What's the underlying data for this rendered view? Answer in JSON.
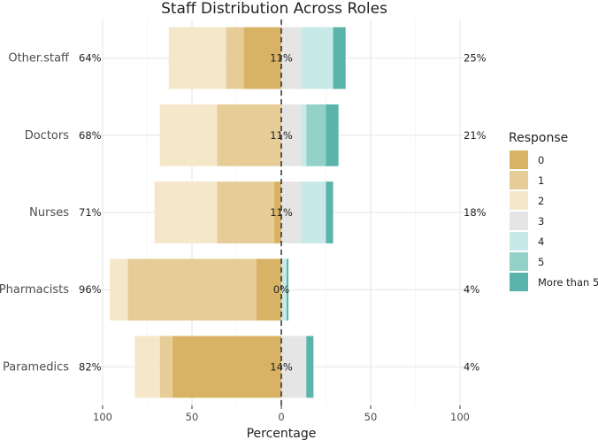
{
  "chart_data": {
    "type": "bar",
    "orientation": "horizontal",
    "diverging": true,
    "title": "Staff Distribution Across Roles",
    "xlabel": "Percentage",
    "ylabel": "",
    "xlim": [
      -100,
      100
    ],
    "xticks": [
      -100,
      -50,
      0,
      50,
      100
    ],
    "xtick_labels": [
      "100",
      "50",
      "0",
      "50",
      "100"
    ],
    "grid": true,
    "legend": {
      "title": "Response",
      "position": "right"
    },
    "categories": [
      "Other.staff",
      "Doctors",
      "Nurses",
      "Pharmacists",
      "Paramedics"
    ],
    "series": [
      {
        "name": "0",
        "color": "#D8B365",
        "values": [
          -21,
          0,
          -4,
          -14,
          -61
        ]
      },
      {
        "name": "1",
        "color": "#E6CD98",
        "values": [
          -10,
          -36,
          -32,
          -72,
          -7
        ]
      },
      {
        "name": "2",
        "color": "#F5E8CA",
        "values": [
          -32,
          -32,
          -35,
          -10,
          -14
        ]
      },
      {
        "name": "3",
        "color": "#E5E5E5",
        "values": [
          11,
          11,
          11,
          0,
          14
        ]
      },
      {
        "name": "4",
        "color": "#C7E9E7",
        "values": [
          18,
          3,
          14,
          3,
          0
        ]
      },
      {
        "name": "5",
        "color": "#92D1C8",
        "values": [
          0,
          11,
          0,
          0,
          0
        ]
      },
      {
        "name": "More than 5",
        "color": "#5AB4AC",
        "values": [
          7,
          7,
          4,
          1,
          4
        ]
      }
    ],
    "low_pct": [
      "64%",
      "68%",
      "71%",
      "96%",
      "82%"
    ],
    "neutral_pct": [
      "11%",
      "11%",
      "11%",
      "0%",
      "14%"
    ],
    "high_pct": [
      "25%",
      "21%",
      "18%",
      "4%",
      "4%"
    ]
  }
}
